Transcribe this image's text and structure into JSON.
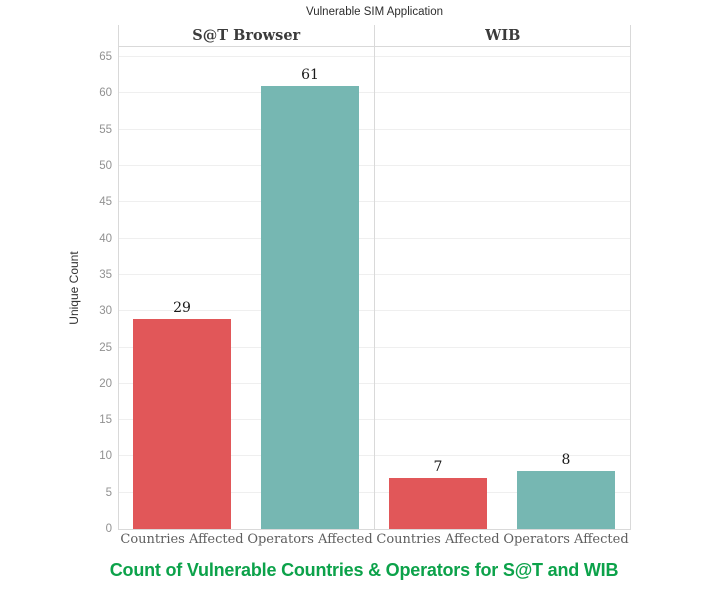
{
  "chart_data": {
    "type": "bar",
    "title": "Vulnerable SIM Application",
    "ylabel": "Unique Count",
    "ylim": [
      0,
      65
    ],
    "y_ticks": [
      0,
      5,
      10,
      15,
      20,
      25,
      30,
      35,
      40,
      45,
      50,
      55,
      60,
      65
    ],
    "grid": true,
    "legend": "none",
    "panels": [
      {
        "label": "S@T Browser",
        "bars": [
          {
            "category": "Countries Affected",
            "value": 29,
            "color": "#e15759"
          },
          {
            "category": "Operators Affected",
            "value": 61,
            "color": "#76b7b2"
          }
        ]
      },
      {
        "label": "WIB",
        "bars": [
          {
            "category": "Countries Affected",
            "value": 7,
            "color": "#e15759"
          },
          {
            "category": "Operators Affected",
            "value": 8,
            "color": "#76b7b2"
          }
        ]
      }
    ],
    "caption": "Count of Vulnerable Countries & Operators for S@T and WIB",
    "caption_color": "#0ca24a",
    "colors": {
      "countries_affected": "#e15759",
      "operators_affected": "#76b7b2",
      "gridline": "#efefef",
      "panel_border": "#d9d9d9",
      "tick_label": "#919191"
    }
  }
}
